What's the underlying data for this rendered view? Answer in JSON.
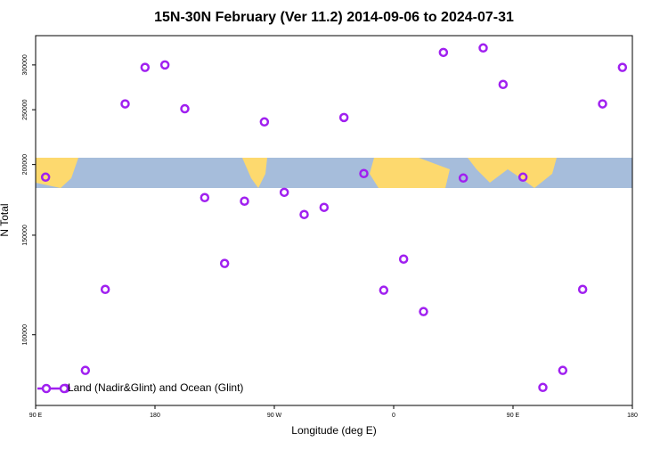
{
  "chart_data": {
    "type": "scatter",
    "title": "15N-30N February (Ver 11.2)   2014-09-06 to 2024-07-31",
    "x_label": "Longitude (deg E)",
    "y_label": "N Total",
    "xlim": [
      90,
      540
    ],
    "xticks": [
      {
        "value": 90,
        "label": "90 E"
      },
      180,
      {
        "value": 270,
        "label": "90 W"
      },
      {
        "value": 360,
        "label": "0"
      },
      {
        "value": 450,
        "label": "90 E"
      },
      {
        "value": 540,
        "label": "180"
      }
    ],
    "ylim": [
      75000,
      338000
    ],
    "y_scale": "log",
    "yticks": [
      100000,
      150000,
      200000,
      250000,
      300000
    ],
    "legend_position": "lower left",
    "series": [
      {
        "name": "Land (Nadir&Glint) and Ocean (Glint)",
        "color": "#a020f0",
        "x": [
          97.5,
          112.5,
          127.5,
          142.5,
          157.5,
          172.5,
          187.5,
          202.5,
          217.5,
          232.5,
          247.5,
          262.5,
          277.5,
          292.5,
          307.5,
          322.5,
          337.5,
          352.5,
          367.5,
          382.5,
          397.5,
          412.5,
          427.5,
          442.5,
          457.5,
          472.5,
          487.5,
          502.5,
          517.5,
          532.5
        ],
        "values": [
          190000,
          80400,
          86500,
          120300,
          256000,
          297000,
          300000,
          251000,
          174800,
          133700,
          172300,
          237900,
          178600,
          163200,
          168000,
          242200,
          192800,
          119900,
          136100,
          109900,
          315700,
          189300,
          321500,
          277100,
          190000,
          80700,
          86500,
          120300,
          256000,
          297000
        ]
      }
    ]
  }
}
